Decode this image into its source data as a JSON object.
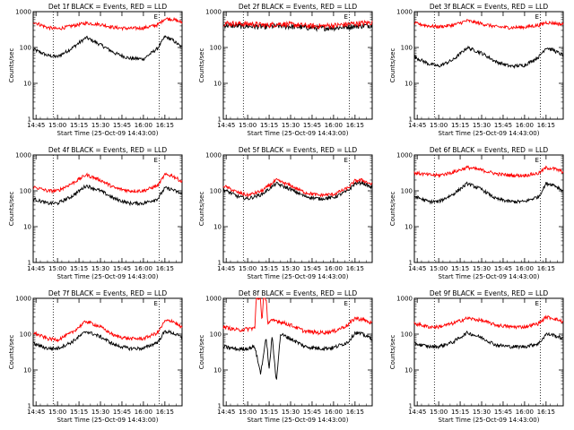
{
  "chart_data": [
    {
      "type": "line",
      "title": "Det 1f BLACK = Events, RED = LLD",
      "ylabel": "Counts/sec",
      "xlabel": "Start Time (25-Oct-09 14:43:00)",
      "scale": "log",
      "ylim": [
        1,
        1000
      ],
      "yticks": [
        "1",
        "10",
        "100",
        "1000"
      ],
      "xtick_labels": [
        "14:45",
        "15:00",
        "15:15",
        "15:30",
        "15:45",
        "16:00",
        "16:15"
      ],
      "x_minutes": [
        2,
        17,
        32,
        47,
        62,
        77,
        92
      ],
      "xlim": [
        0,
        104
      ],
      "markers": [
        {
          "x": 14,
          "label": ""
        },
        {
          "x": 88,
          "label": "E"
        }
      ],
      "series": [
        {
          "color": "#000000",
          "x": [
            0,
            10,
            17,
            27,
            37,
            47,
            57,
            67,
            77,
            87,
            92,
            97,
            104
          ],
          "y": [
            90,
            60,
            55,
            95,
            190,
            120,
            70,
            50,
            48,
            95,
            200,
            165,
            100
          ]
        },
        {
          "color": "#ff0000",
          "x": [
            0,
            10,
            17,
            27,
            37,
            47,
            57,
            67,
            77,
            87,
            92,
            97,
            104
          ],
          "y": [
            520,
            360,
            330,
            400,
            480,
            440,
            360,
            340,
            350,
            430,
            640,
            620,
            500
          ]
        }
      ]
    },
    {
      "type": "line",
      "title": "Det 2f BLACK = Events, RED = LLD",
      "ylabel": "Counts/sec",
      "xlabel": "Start Time (25-Oct-09 14:43:00)",
      "scale": "log",
      "ylim": [
        1,
        1000
      ],
      "yticks": [
        "1",
        "10",
        "100",
        "1000"
      ],
      "xtick_labels": [
        "14:45",
        "15:00",
        "15:15",
        "15:30",
        "15:45",
        "16:00",
        "16:15"
      ],
      "x_minutes": [
        2,
        17,
        32,
        47,
        62,
        77,
        92
      ],
      "xlim": [
        0,
        104
      ],
      "markers": [
        {
          "x": 14,
          "label": ""
        },
        {
          "x": 88,
          "label": "E"
        }
      ],
      "series": [
        {
          "color": "#000000",
          "x": [
            0,
            10,
            20,
            30,
            40,
            50,
            60,
            70,
            80,
            90,
            104
          ],
          "y": [
            420,
            400,
            390,
            380,
            400,
            380,
            360,
            350,
            360,
            390,
            420
          ]
        },
        {
          "color": "#ff0000",
          "x": [
            0,
            10,
            20,
            30,
            40,
            50,
            60,
            70,
            80,
            90,
            104
          ],
          "y": [
            480,
            460,
            450,
            420,
            460,
            430,
            400,
            400,
            420,
            460,
            500
          ]
        }
      ]
    },
    {
      "type": "line",
      "title": "Det 3f BLACK = Events, RED = LLD",
      "ylabel": "Counts/sec",
      "xlabel": "Start Time (25-Oct-09 14:43:00)",
      "scale": "log",
      "ylim": [
        1,
        1000
      ],
      "yticks": [
        "1",
        "10",
        "100",
        "1000"
      ],
      "xtick_labels": [
        "14:45",
        "15:00",
        "15:15",
        "15:30",
        "15:45",
        "16:00",
        "16:15"
      ],
      "x_minutes": [
        2,
        17,
        32,
        47,
        62,
        77,
        92
      ],
      "xlim": [
        0,
        104
      ],
      "markers": [
        {
          "x": 14,
          "label": ""
        },
        {
          "x": 88,
          "label": "E"
        }
      ],
      "series": [
        {
          "color": "#000000",
          "x": [
            0,
            10,
            17,
            27,
            37,
            47,
            57,
            67,
            77,
            87,
            92,
            97,
            104
          ],
          "y": [
            55,
            35,
            30,
            45,
            100,
            70,
            40,
            30,
            32,
            55,
            100,
            85,
            60
          ]
        },
        {
          "color": "#ff0000",
          "x": [
            0,
            10,
            17,
            27,
            37,
            47,
            57,
            67,
            77,
            87,
            92,
            97,
            104
          ],
          "y": [
            480,
            400,
            380,
            420,
            560,
            460,
            380,
            360,
            370,
            420,
            500,
            480,
            440
          ]
        }
      ]
    },
    {
      "type": "line",
      "title": "Det 4f BLACK = Events, RED = LLD",
      "ylabel": "Counts/sec",
      "xlabel": "Start Time (25-Oct-09 14:43:00)",
      "scale": "log",
      "ylim": [
        1,
        1000
      ],
      "yticks": [
        "1",
        "10",
        "100",
        "1000"
      ],
      "xtick_labels": [
        "14:45",
        "15:00",
        "15:15",
        "15:30",
        "15:45",
        "16:00",
        "16:15"
      ],
      "x_minutes": [
        2,
        17,
        32,
        47,
        62,
        77,
        92
      ],
      "xlim": [
        0,
        104
      ],
      "markers": [
        {
          "x": 14,
          "label": ""
        },
        {
          "x": 88,
          "label": "E"
        }
      ],
      "series": [
        {
          "color": "#000000",
          "x": [
            0,
            10,
            17,
            27,
            37,
            47,
            57,
            67,
            77,
            87,
            92,
            97,
            104
          ],
          "y": [
            60,
            45,
            45,
            70,
            140,
            100,
            60,
            45,
            45,
            60,
            120,
            110,
            80
          ]
        },
        {
          "color": "#ff0000",
          "x": [
            0,
            10,
            17,
            27,
            37,
            47,
            57,
            67,
            77,
            87,
            92,
            97,
            104
          ],
          "y": [
            130,
            100,
            100,
            160,
            280,
            200,
            120,
            100,
            100,
            140,
            280,
            270,
            180
          ]
        }
      ]
    },
    {
      "type": "line",
      "title": "Det 5f BLACK = Events, RED = LLD",
      "ylabel": "Counts/sec",
      "xlabel": "Start Time (25-Oct-09 14:43:00)",
      "scale": "log",
      "ylim": [
        1,
        1000
      ],
      "yticks": [
        "1",
        "10",
        "100",
        "1000"
      ],
      "xtick_labels": [
        "14:45",
        "15:00",
        "15:15",
        "15:30",
        "15:45",
        "16:00",
        "16:15"
      ],
      "x_minutes": [
        2,
        17,
        32,
        47,
        62,
        77,
        92
      ],
      "xlim": [
        0,
        104
      ],
      "markers": [
        {
          "x": 14,
          "label": ""
        },
        {
          "x": 88,
          "label": "E"
        }
      ],
      "series": [
        {
          "color": "#000000",
          "x": [
            0,
            10,
            17,
            27,
            37,
            47,
            57,
            67,
            77,
            87,
            92,
            97,
            104
          ],
          "y": [
            110,
            70,
            60,
            80,
            160,
            110,
            70,
            60,
            65,
            100,
            160,
            170,
            120
          ]
        },
        {
          "color": "#ff0000",
          "x": [
            0,
            10,
            17,
            27,
            37,
            47,
            57,
            67,
            77,
            87,
            92,
            97,
            104
          ],
          "y": [
            140,
            90,
            75,
            100,
            200,
            140,
            90,
            75,
            80,
            120,
            190,
            200,
            150
          ]
        }
      ]
    },
    {
      "type": "line",
      "title": "Det 6f BLACK = Events, RED = LLD",
      "ylabel": "Counts/sec",
      "xlabel": "Start Time (25-Oct-09 14:43:00)",
      "scale": "log",
      "ylim": [
        1,
        1000
      ],
      "yticks": [
        "1",
        "10",
        "100",
        "1000"
      ],
      "xtick_labels": [
        "14:45",
        "15:00",
        "15:15",
        "15:30",
        "15:45",
        "16:00",
        "16:15"
      ],
      "x_minutes": [
        2,
        17,
        32,
        47,
        62,
        77,
        92
      ],
      "xlim": [
        0,
        104
      ],
      "markers": [
        {
          "x": 14,
          "label": ""
        },
        {
          "x": 88,
          "label": "E"
        }
      ],
      "series": [
        {
          "color": "#000000",
          "x": [
            0,
            10,
            17,
            27,
            37,
            47,
            57,
            67,
            77,
            87,
            92,
            97,
            104
          ],
          "y": [
            70,
            50,
            50,
            80,
            160,
            110,
            60,
            50,
            50,
            70,
            160,
            150,
            100
          ]
        },
        {
          "color": "#ff0000",
          "x": [
            0,
            10,
            17,
            27,
            37,
            47,
            57,
            67,
            77,
            87,
            92,
            97,
            104
          ],
          "y": [
            320,
            280,
            270,
            330,
            450,
            380,
            300,
            270,
            270,
            310,
            440,
            420,
            340
          ]
        }
      ]
    },
    {
      "type": "line",
      "title": "Det 7f BLACK = Events, RED = LLD",
      "ylabel": "Counts/sec",
      "xlabel": "Start Time (25-Oct-09 14:43:00)",
      "scale": "log",
      "ylim": [
        1,
        1000
      ],
      "yticks": [
        "1",
        "10",
        "100",
        "1000"
      ],
      "xtick_labels": [
        "14:45",
        "15:00",
        "15:15",
        "15:30",
        "15:45",
        "16:00",
        "16:15"
      ],
      "x_minutes": [
        2,
        17,
        32,
        47,
        62,
        77,
        92
      ],
      "xlim": [
        0,
        104
      ],
      "markers": [
        {
          "x": 14,
          "label": ""
        },
        {
          "x": 88,
          "label": "E"
        }
      ],
      "series": [
        {
          "color": "#000000",
          "x": [
            0,
            10,
            17,
            27,
            37,
            47,
            57,
            67,
            77,
            87,
            92,
            97,
            104
          ],
          "y": [
            55,
            40,
            40,
            60,
            120,
            85,
            50,
            40,
            40,
            60,
            120,
            110,
            80
          ]
        },
        {
          "color": "#ff0000",
          "x": [
            0,
            10,
            17,
            27,
            37,
            47,
            57,
            67,
            77,
            87,
            92,
            97,
            104
          ],
          "y": [
            110,
            75,
            70,
            110,
            230,
            160,
            90,
            75,
            75,
            110,
            230,
            240,
            150
          ]
        }
      ]
    },
    {
      "type": "line",
      "title": "Det 8f BLACK = Events, RED = LLD",
      "ylabel": "Counts/sec",
      "xlabel": "Start Time (25-Oct-09 14:43:00)",
      "scale": "log",
      "ylim": [
        1,
        1000
      ],
      "yticks": [
        "1",
        "10",
        "100",
        "1000"
      ],
      "xtick_labels": [
        "14:45",
        "15:00",
        "15:15",
        "15:30",
        "15:45",
        "16:00",
        "16:15"
      ],
      "x_minutes": [
        2,
        17,
        32,
        47,
        62,
        77,
        92
      ],
      "xlim": [
        0,
        104
      ],
      "markers": [
        {
          "x": 14,
          "label": ""
        },
        {
          "x": 88,
          "label": "E"
        }
      ],
      "series": [
        {
          "color": "#000000",
          "x": [
            0,
            10,
            17,
            22,
            26,
            30,
            32,
            34,
            37,
            40,
            47,
            57,
            67,
            77,
            87,
            92,
            97,
            104
          ],
          "y": [
            45,
            38,
            40,
            45,
            8,
            80,
            10,
            90,
            5,
            100,
            75,
            45,
            40,
            42,
            60,
            110,
            100,
            75
          ]
        },
        {
          "color": "#ff0000",
          "x": [
            0,
            10,
            17,
            22,
            23,
            26,
            27,
            28,
            30,
            31,
            33,
            37,
            47,
            57,
            67,
            77,
            87,
            92,
            97,
            104
          ],
          "y": [
            160,
            130,
            140,
            150,
            1000,
            1000,
            200,
            1000,
            1000,
            200,
            230,
            240,
            180,
            120,
            110,
            120,
            180,
            280,
            260,
            200
          ]
        }
      ]
    },
    {
      "type": "line",
      "title": "Det 9f BLACK = Events, RED = LLD",
      "ylabel": "Counts/sec",
      "xlabel": "Start Time (25-Oct-09 14:43:00)",
      "scale": "log",
      "ylim": [
        1,
        1000
      ],
      "yticks": [
        "1",
        "10",
        "100",
        "1000"
      ],
      "xtick_labels": [
        "14:45",
        "15:00",
        "15:15",
        "15:30",
        "15:45",
        "16:00",
        "16:15"
      ],
      "x_minutes": [
        2,
        17,
        32,
        47,
        62,
        77,
        92
      ],
      "xlim": [
        0,
        104
      ],
      "markers": [
        {
          "x": 14,
          "label": ""
        },
        {
          "x": 88,
          "label": "E"
        }
      ],
      "series": [
        {
          "color": "#000000",
          "x": [
            0,
            10,
            17,
            27,
            37,
            47,
            57,
            67,
            77,
            87,
            92,
            97,
            104
          ],
          "y": [
            55,
            45,
            45,
            60,
            110,
            80,
            50,
            45,
            45,
            55,
            100,
            95,
            75
          ]
        },
        {
          "color": "#ff0000",
          "x": [
            0,
            10,
            17,
            27,
            37,
            47,
            57,
            67,
            77,
            87,
            92,
            97,
            104
          ],
          "y": [
            200,
            160,
            160,
            200,
            280,
            240,
            180,
            160,
            160,
            200,
            300,
            280,
            220
          ]
        }
      ]
    }
  ]
}
